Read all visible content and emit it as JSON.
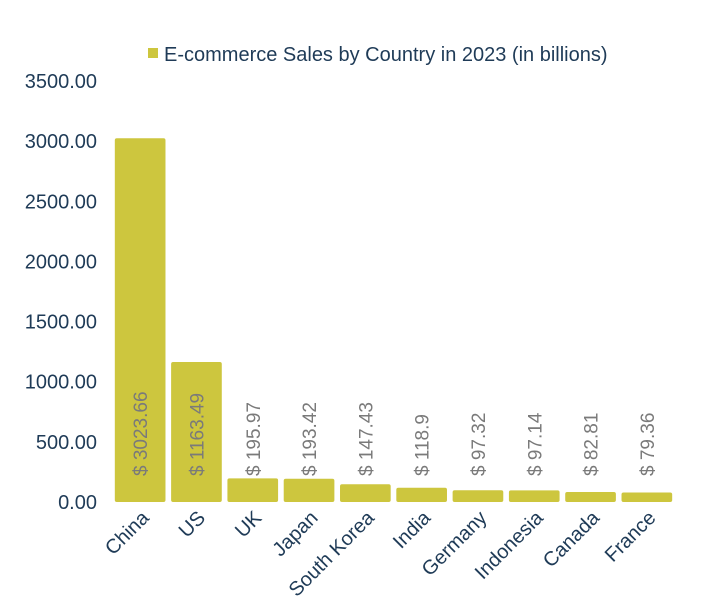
{
  "chart_data": {
    "type": "bar",
    "legend": {
      "label": "E-commerce Sales by Country in 2023 (in billions)",
      "position": "top"
    },
    "categories": [
      "China",
      "US",
      "UK",
      "Japan",
      "South Korea",
      "India",
      "Germany",
      "Indonesia",
      "Canada",
      "France"
    ],
    "values": [
      3023.66,
      1163.49,
      195.97,
      193.42,
      147.43,
      118.9,
      97.32,
      97.14,
      82.81,
      79.36
    ],
    "data_labels": [
      "$ 3023.66",
      "$ 1163.49",
      "$ 195.97",
      "$ 193.42",
      "$ 147.43",
      "$ 118.9",
      "$ 97.32",
      "$ 97.14",
      "$ 82.81",
      "$ 79.36"
    ],
    "y_ticks": [
      "0.00",
      "500.00",
      "1000.00",
      "1500.00",
      "2000.00",
      "2500.00",
      "3000.00",
      "3500.00"
    ],
    "ylim": [
      0,
      3500
    ],
    "grid": false,
    "colors": {
      "bar": "#cdc63e",
      "axis_text": "#1f3b57",
      "data_label": "#7a7a7a"
    }
  }
}
